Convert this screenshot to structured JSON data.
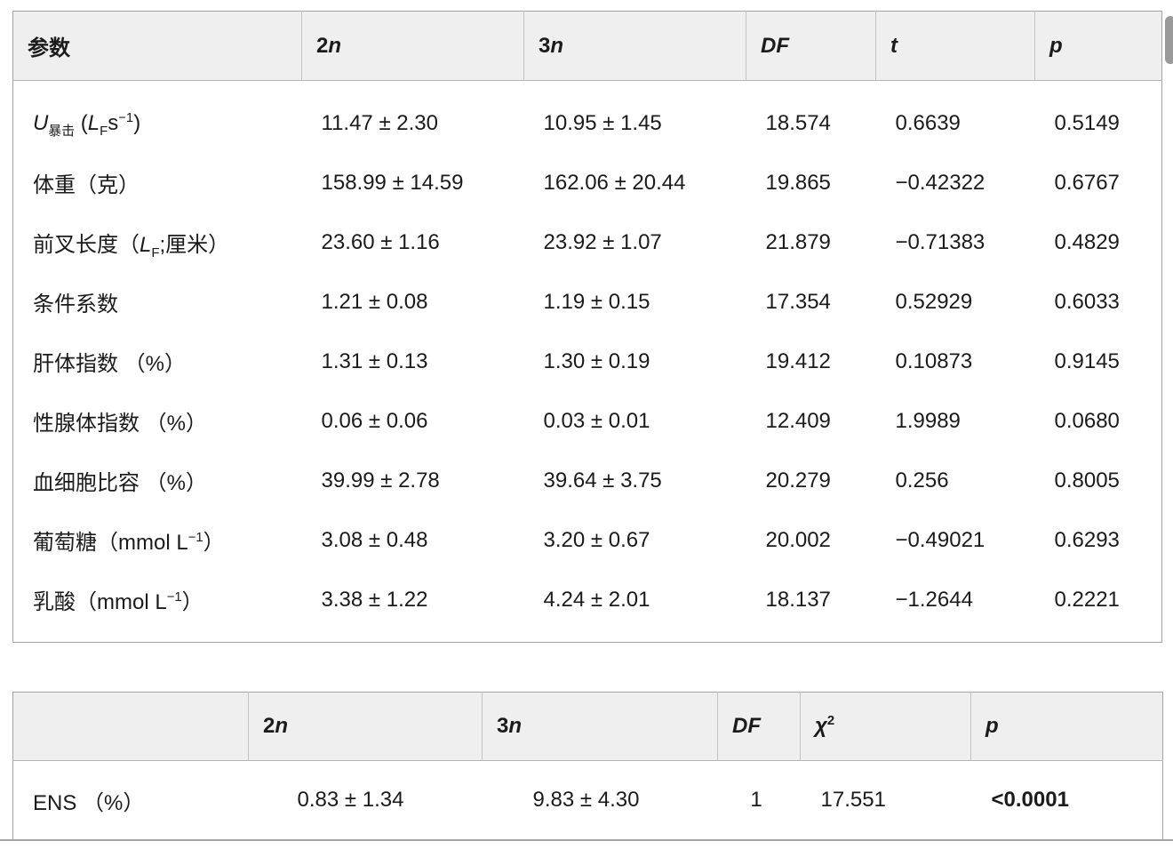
{
  "colors": {
    "background": "#ffffff",
    "header_background": "#efefef",
    "outer_border": "#a3a3a3",
    "header_divider": "#c3c3c3",
    "text": "#1b1b1b",
    "scrollbar_thumb": "#9a9a9a"
  },
  "table1": {
    "headers": [
      "参数",
      "2*n*",
      "3*n*",
      "*DF*",
      "*t*",
      "*p*"
    ],
    "rows": [
      [
        "*U*_{暴击} (*L*_{F}s^{−1})",
        "11.47 ± 2.30",
        "10.95 ± 1.45",
        "18.574",
        "0.6639",
        "0.5149"
      ],
      [
        "体重（克）",
        "158.99 ± 14.59",
        "162.06 ± 20.44",
        "19.865",
        "−0.42322",
        "0.6767"
      ],
      [
        "前叉长度（*L*_{F};厘米）",
        "23.60 ± 1.16",
        "23.92 ± 1.07",
        "21.879",
        "−0.71383",
        "0.4829"
      ],
      [
        "条件系数",
        "1.21 ± 0.08",
        "1.19 ± 0.15",
        "17.354",
        "0.52929",
        "0.6033"
      ],
      [
        "肝体指数 （%）",
        "1.31 ± 0.13",
        "1.30 ± 0.19",
        "19.412",
        "0.10873",
        "0.9145"
      ],
      [
        "性腺体指数 （%）",
        "0.06 ± 0.06",
        "0.03 ± 0.01",
        "12.409",
        "1.9989",
        "0.0680"
      ],
      [
        "血细胞比容 （%）",
        "39.99 ± 2.78",
        "39.64 ± 3.75",
        "20.279",
        "0.256",
        "0.8005"
      ],
      [
        "葡萄糖（mmol L^{−1}）",
        "3.08 ± 0.48",
        "3.20 ± 0.67",
        "20.002",
        "−0.49021",
        "0.6293"
      ],
      [
        "乳酸（mmol L^{−1}）",
        "3.38 ± 1.22",
        "4.24 ± 2.01",
        "18.137",
        "−1.2644",
        "0.2221"
      ]
    ]
  },
  "table2": {
    "headers": [
      "",
      "2*n*",
      "3*n*",
      "*DF*",
      "*χ*^{2}",
      "*p*"
    ],
    "rows": [
      [
        "ENS （%）",
        "0.83 ± 1.34",
        "9.83 ± 4.30",
        "1",
        "17.551",
        "**<0.0001**"
      ]
    ]
  }
}
